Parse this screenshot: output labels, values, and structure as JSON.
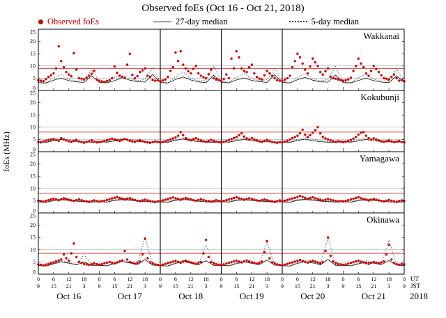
{
  "title": "Observed foEs (Oct 16 - Oct 21, 2018)",
  "legend": {
    "observed": "Observed foEs",
    "median27": "27-day median",
    "median5": "5-day median"
  },
  "y_axis_label": "foEs (MHz)",
  "colors": {
    "observed": "#cc0000",
    "threshold": "#cc2222",
    "median27": "#111111",
    "median5": "#444444",
    "grid": "#999999"
  },
  "axes": {
    "total_hours": 144,
    "tick_step_hours": 6,
    "ut_cycle": [
      "0",
      "6",
      "12",
      "18"
    ],
    "jst_cycle": [
      "9",
      "15",
      "21",
      "3"
    ],
    "ut_label": "UT",
    "jst_label": "JST",
    "year_label": "2018",
    "day_labels": [
      "Oct 16",
      "Oct 17",
      "Oct 18",
      "Oct 19",
      "Oct 20",
      "Oct 21"
    ],
    "day_separators": [
      48,
      72,
      96
    ]
  },
  "chart_data": [
    {
      "type": "scatter",
      "station": "Wakkanai",
      "ylim": [
        0,
        25
      ],
      "y_ticks": [
        0,
        5,
        10,
        15,
        20,
        25
      ],
      "threshold_mhz": 9,
      "observed": {
        "start_hour": 0,
        "step_hours": 1,
        "values": [
          4.2,
          4.0,
          3.8,
          4.6,
          5.5,
          6.2,
          7.0,
          9.0,
          18.0,
          12.0,
          9.5,
          7.5,
          6.5,
          5.8,
          15.2,
          8.5,
          5.0,
          4.8,
          4.5,
          5.2,
          6.0,
          6.8,
          8.0,
          4.4,
          4.0,
          3.7,
          3.5,
          3.9,
          4.2,
          5.0,
          9.8,
          7.2,
          6.0,
          5.6,
          5.2,
          10.5,
          15.0,
          6.4,
          5.0,
          5.8,
          7.5,
          8.2,
          9.0,
          6.0,
          5.5,
          4.3,
          4.0,
          4.1,
          3.8,
          4.1,
          4.5,
          5.5,
          8.0,
          9.5,
          15.5,
          12.0,
          16.0,
          10.5,
          9.0,
          7.8,
          7.0,
          8.8,
          10.0,
          7.0,
          6.0,
          5.4,
          5.0,
          6.6,
          8.5,
          5.0,
          4.5,
          4.2,
          4.0,
          4.6,
          6.5,
          5.0,
          13.0,
          9.0,
          16.0,
          13.5,
          9.0,
          8.0,
          7.5,
          9.5,
          10.5,
          7.0,
          5.5,
          4.8,
          4.5,
          6.2,
          8.0,
          7.0,
          6.0,
          5.0,
          4.2,
          4.0,
          3.8,
          4.4,
          5.0,
          6.0,
          9.5,
          12.0,
          15.0,
          13.5,
          11.0,
          8.5,
          7.0,
          9.8,
          13.0,
          11.5,
          10.0,
          7.5,
          6.5,
          7.8,
          9.0,
          5.6,
          5.0,
          4.8,
          4.5,
          4.2,
          4.0,
          4.2,
          4.5,
          5.2,
          8.0,
          10.0,
          13.0,
          11.0,
          9.5,
          7.0,
          6.0,
          8.0,
          10.0,
          8.8,
          7.5,
          6.2,
          5.0,
          4.8,
          4.5,
          5.5,
          6.5,
          5.0,
          4.0,
          4.2,
          3.8
        ]
      },
      "median27": {
        "start_hour": 0,
        "step_hours": 3,
        "values": [
          3.2,
          3.0,
          4.2,
          5.0,
          4.0,
          3.5,
          3.3,
          6.0,
          3.3,
          3.1,
          4.0,
          5.2,
          4.2,
          3.6,
          3.4,
          6.5,
          3.2,
          3.0,
          4.5,
          5.5,
          4.3,
          3.5,
          3.2,
          6.2,
          3.4,
          3.1,
          4.3,
          5.1,
          4.1,
          3.6,
          3.3,
          6.4,
          3.3,
          3.0,
          4.4,
          5.3,
          4.2,
          3.5,
          3.4,
          6.3,
          3.2,
          3.1,
          4.1,
          5.0,
          4.0,
          3.4,
          3.2,
          6.0,
          3.3
        ]
      },
      "median5": {
        "start_hour": 0,
        "step_hours": 3,
        "values": [
          3.5,
          3.2,
          5.0,
          6.5,
          4.5,
          3.8,
          4.2,
          8.5,
          3.6,
          3.3,
          5.2,
          7.0,
          4.8,
          4.0,
          4.5,
          9.5,
          3.5,
          3.2,
          5.5,
          7.5,
          5.0,
          3.9,
          4.3,
          10.0,
          3.7,
          3.3,
          5.3,
          7.2,
          4.7,
          4.0,
          4.4,
          9.0,
          3.6,
          3.2,
          5.4,
          7.0,
          4.8,
          3.9,
          4.5,
          9.8,
          3.5,
          3.3,
          5.1,
          6.8,
          4.6,
          3.8,
          4.2,
          8.8,
          3.5
        ]
      }
    },
    {
      "type": "scatter",
      "station": "Kokubunji",
      "ylim": [
        0,
        25
      ],
      "y_ticks": [
        0,
        5,
        10,
        15,
        20,
        25
      ],
      "threshold_mhz": 8,
      "observed": {
        "start_hour": 0,
        "step_hours": 1,
        "values": [
          4.0,
          3.8,
          4.2,
          4.5,
          4.8,
          5.0,
          5.2,
          4.8,
          4.5,
          5.5,
          5.0,
          4.6,
          4.3,
          4.0,
          4.4,
          4.8,
          4.2,
          3.9,
          3.7,
          4.0,
          4.3,
          4.6,
          4.1,
          3.8,
          3.9,
          4.1,
          4.4,
          4.7,
          5.0,
          5.3,
          5.0,
          4.7,
          4.4,
          4.8,
          5.2,
          4.9,
          4.5,
          4.2,
          4.0,
          4.4,
          4.7,
          4.3,
          4.0,
          3.8,
          3.6,
          3.9,
          4.2,
          4.0,
          3.8,
          4.0,
          4.3,
          4.6,
          5.0,
          5.4,
          5.8,
          6.5,
          8.0,
          6.8,
          5.5,
          5.0,
          4.7,
          5.1,
          5.5,
          5.0,
          4.6,
          4.3,
          4.0,
          4.4,
          4.8,
          4.4,
          4.1,
          3.9,
          3.7,
          4.0,
          4.4,
          4.8,
          5.2,
          5.6,
          6.0,
          6.8,
          7.5,
          6.2,
          5.4,
          5.0,
          5.5,
          5.0,
          4.6,
          4.2,
          4.0,
          4.4,
          4.8,
          4.4,
          4.0,
          3.8,
          3.6,
          3.9,
          3.8,
          4.1,
          4.5,
          5.0,
          5.5,
          6.0,
          6.5,
          7.5,
          9.0,
          7.0,
          6.0,
          6.8,
          7.8,
          8.8,
          10.0,
          7.5,
          6.0,
          5.4,
          5.0,
          4.6,
          4.3,
          4.0,
          4.3,
          4.1,
          3.9,
          4.1,
          4.4,
          4.8,
          5.3,
          6.0,
          7.0,
          7.8,
          8.0,
          6.5,
          5.5,
          5.0,
          5.4,
          5.0,
          4.6,
          4.2,
          4.0,
          4.3,
          4.6,
          4.2,
          3.9,
          4.1,
          4.4,
          4.0,
          3.8
        ]
      },
      "median27": {
        "start_hour": 0,
        "step_hours": 3,
        "values": [
          4.0,
          3.8,
          4.5,
          5.0,
          4.5,
          4.2,
          4.0,
          3.9,
          4.1,
          3.9,
          4.4,
          5.1,
          4.6,
          4.2,
          4.0,
          3.8,
          4.0,
          3.8,
          4.6,
          5.2,
          4.5,
          4.1,
          3.9,
          3.8,
          4.1,
          3.9,
          4.5,
          5.0,
          4.4,
          4.2,
          4.0,
          3.9,
          4.0,
          3.8,
          4.6,
          5.1,
          4.5,
          4.1,
          3.9,
          3.8,
          4.1,
          3.9,
          4.4,
          5.0,
          4.4,
          4.2,
          4.0,
          3.9,
          4.0
        ]
      },
      "median5": {
        "start_hour": 0,
        "step_hours": 3,
        "values": [
          4.2,
          4.0,
          4.8,
          5.5,
          5.0,
          4.5,
          4.2,
          4.0,
          4.3,
          4.1,
          4.9,
          5.6,
          5.1,
          4.6,
          4.2,
          4.1,
          4.2,
          4.0,
          5.0,
          5.7,
          5.0,
          4.5,
          4.1,
          4.0,
          4.3,
          4.1,
          4.9,
          5.5,
          4.9,
          4.6,
          4.2,
          4.1,
          4.2,
          4.0,
          5.0,
          5.8,
          5.2,
          4.5,
          4.2,
          4.0,
          4.3,
          4.1,
          4.8,
          5.5,
          5.0,
          4.6,
          4.2,
          4.1,
          4.2
        ]
      }
    },
    {
      "type": "scatter",
      "station": "Yamagawa",
      "ylim": [
        0,
        25
      ],
      "y_ticks": [
        0,
        5,
        10,
        15,
        20,
        25
      ],
      "threshold_mhz": 8,
      "observed": {
        "start_hour": 0,
        "step_hours": 1,
        "values": [
          5.0,
          4.8,
          4.6,
          4.9,
          5.2,
          5.5,
          5.8,
          5.5,
          5.2,
          5.6,
          6.0,
          5.7,
          5.4,
          5.1,
          4.9,
          5.2,
          5.5,
          5.2,
          4.9,
          4.7,
          4.5,
          4.8,
          5.1,
          4.8,
          4.6,
          4.8,
          5.0,
          5.3,
          5.6,
          5.9,
          6.2,
          6.5,
          6.1,
          5.8,
          5.5,
          5.8,
          6.0,
          5.6,
          5.3,
          5.0,
          4.8,
          5.1,
          5.4,
          5.1,
          4.8,
          4.6,
          4.4,
          4.7,
          4.9,
          5.1,
          5.4,
          5.7,
          6.0,
          6.3,
          6.0,
          5.7,
          5.4,
          5.8,
          6.1,
          5.8,
          5.5,
          5.2,
          5.0,
          5.3,
          5.6,
          5.3,
          5.0,
          4.8,
          4.6,
          4.9,
          5.2,
          4.9,
          4.7,
          4.9,
          5.2,
          5.5,
          5.8,
          6.1,
          6.4,
          6.0,
          5.7,
          5.4,
          5.7,
          6.0,
          5.7,
          5.4,
          5.1,
          4.9,
          5.2,
          5.5,
          5.2,
          4.9,
          4.7,
          4.5,
          4.8,
          5.1,
          4.8,
          5.0,
          5.3,
          5.6,
          5.9,
          6.2,
          6.5,
          7.0,
          6.6,
          6.2,
          5.8,
          6.1,
          6.4,
          6.0,
          5.7,
          5.4,
          5.1,
          5.4,
          5.7,
          5.4,
          5.1,
          4.9,
          4.7,
          4.9,
          4.7,
          4.9,
          5.2,
          5.5,
          5.8,
          6.1,
          6.4,
          6.0,
          5.7,
          5.4,
          5.1,
          5.4,
          5.7,
          5.4,
          5.1,
          4.9,
          4.7,
          5.0,
          5.3,
          5.0,
          4.7,
          4.5,
          4.8,
          5.1,
          4.9
        ]
      },
      "median27": {
        "start_hour": 0,
        "step_hours": 3,
        "values": [
          4.5,
          4.3,
          5.0,
          5.5,
          5.2,
          4.8,
          4.6,
          4.4,
          4.6,
          4.4,
          5.1,
          5.6,
          5.3,
          4.9,
          4.6,
          4.5,
          4.5,
          4.3,
          5.2,
          5.7,
          5.2,
          4.8,
          4.5,
          4.4,
          4.6,
          4.4,
          5.1,
          5.5,
          5.1,
          4.9,
          4.6,
          4.5,
          4.5,
          4.3,
          5.2,
          5.6,
          5.3,
          4.8,
          4.6,
          4.4,
          4.6,
          4.4,
          5.0,
          5.5,
          5.2,
          4.9,
          4.5,
          4.4,
          4.5
        ]
      },
      "median5": {
        "start_hour": 0,
        "step_hours": 3,
        "values": [
          4.8,
          4.5,
          5.3,
          5.8,
          5.5,
          5.0,
          4.8,
          4.6,
          4.9,
          4.6,
          5.4,
          5.9,
          5.6,
          5.1,
          4.8,
          4.7,
          4.8,
          4.5,
          5.5,
          6.0,
          5.5,
          5.0,
          4.7,
          4.6,
          4.9,
          4.6,
          5.4,
          5.8,
          5.4,
          5.1,
          4.8,
          4.7,
          4.8,
          4.5,
          5.5,
          5.9,
          5.6,
          5.0,
          4.8,
          4.6,
          4.9,
          4.6,
          5.3,
          5.8,
          5.5,
          5.1,
          4.7,
          4.6,
          4.8
        ]
      }
    },
    {
      "type": "scatter",
      "station": "Okinawa",
      "ylim": [
        0,
        25
      ],
      "y_ticks": [
        0,
        5,
        10,
        15,
        20,
        25
      ],
      "threshold_mhz": 8.5,
      "observed": {
        "start_hour": 0,
        "step_hours": 1,
        "values": [
          4.0,
          3.8,
          3.6,
          3.9,
          4.2,
          4.5,
          4.8,
          5.2,
          5.6,
          6.0,
          8.0,
          6.5,
          5.5,
          8.5,
          12.5,
          7.0,
          5.0,
          4.6,
          4.2,
          4.0,
          3.8,
          4.1,
          4.4,
          4.1,
          3.9,
          4.1,
          4.4,
          4.7,
          5.0,
          4.7,
          4.4,
          4.8,
          5.2,
          5.6,
          9.5,
          6.0,
          5.0,
          4.6,
          4.3,
          4.7,
          5.1,
          8.0,
          14.5,
          6.5,
          4.8,
          4.4,
          4.0,
          3.8,
          3.6,
          3.9,
          4.2,
          4.5,
          4.8,
          5.1,
          5.4,
          5.0,
          4.7,
          5.1,
          5.5,
          5.1,
          4.8,
          4.5,
          4.2,
          4.6,
          5.0,
          8.5,
          14.0,
          7.0,
          5.0,
          4.5,
          4.1,
          3.9,
          3.7,
          4.0,
          4.3,
          4.6,
          4.9,
          5.2,
          5.5,
          5.1,
          4.8,
          5.2,
          5.6,
          5.2,
          4.9,
          4.6,
          4.3,
          4.7,
          5.1,
          9.0,
          13.5,
          6.5,
          4.8,
          4.4,
          4.0,
          3.8,
          3.6,
          3.9,
          4.2,
          4.5,
          4.8,
          5.1,
          5.4,
          5.8,
          5.4,
          5.0,
          4.7,
          5.1,
          5.5,
          5.1,
          4.8,
          4.5,
          4.9,
          9.5,
          15.0,
          7.5,
          5.2,
          4.6,
          4.2,
          4.0,
          3.8,
          4.0,
          4.3,
          4.6,
          4.9,
          5.2,
          5.5,
          5.1,
          4.8,
          4.5,
          4.2,
          4.6,
          5.0,
          4.7,
          4.4,
          4.8,
          5.2,
          8.0,
          12.0,
          6.0,
          4.5,
          4.1,
          3.9,
          4.2,
          4.0
        ]
      },
      "median27": {
        "start_hour": 0,
        "step_hours": 3,
        "values": [
          3.5,
          3.3,
          4.2,
          5.0,
          4.5,
          3.8,
          5.0,
          3.6,
          3.6,
          3.4,
          4.3,
          5.1,
          4.6,
          3.9,
          6.0,
          3.7,
          3.5,
          3.3,
          4.4,
          5.2,
          4.5,
          3.8,
          5.5,
          3.6,
          3.6,
          3.4,
          4.3,
          5.0,
          4.4,
          3.9,
          5.8,
          3.7,
          3.5,
          3.3,
          4.4,
          5.1,
          4.6,
          3.8,
          6.0,
          3.6,
          3.6,
          3.4,
          4.2,
          5.0,
          4.5,
          3.9,
          5.6,
          3.7,
          3.5
        ]
      },
      "median5": {
        "start_hour": 0,
        "step_hours": 3,
        "values": [
          3.6,
          3.4,
          4.5,
          5.5,
          4.8,
          4.0,
          8.0,
          3.8,
          3.7,
          3.5,
          4.6,
          5.6,
          4.9,
          4.2,
          15.0,
          3.9,
          3.6,
          3.4,
          4.7,
          5.7,
          4.8,
          4.1,
          12.0,
          3.8,
          3.7,
          3.5,
          4.6,
          5.5,
          4.9,
          4.2,
          13.0,
          3.9,
          3.6,
          3.4,
          4.7,
          5.8,
          5.0,
          4.1,
          15.0,
          3.8,
          3.7,
          3.5,
          4.5,
          5.6,
          4.8,
          4.2,
          14.0,
          3.9,
          3.6
        ]
      }
    }
  ]
}
